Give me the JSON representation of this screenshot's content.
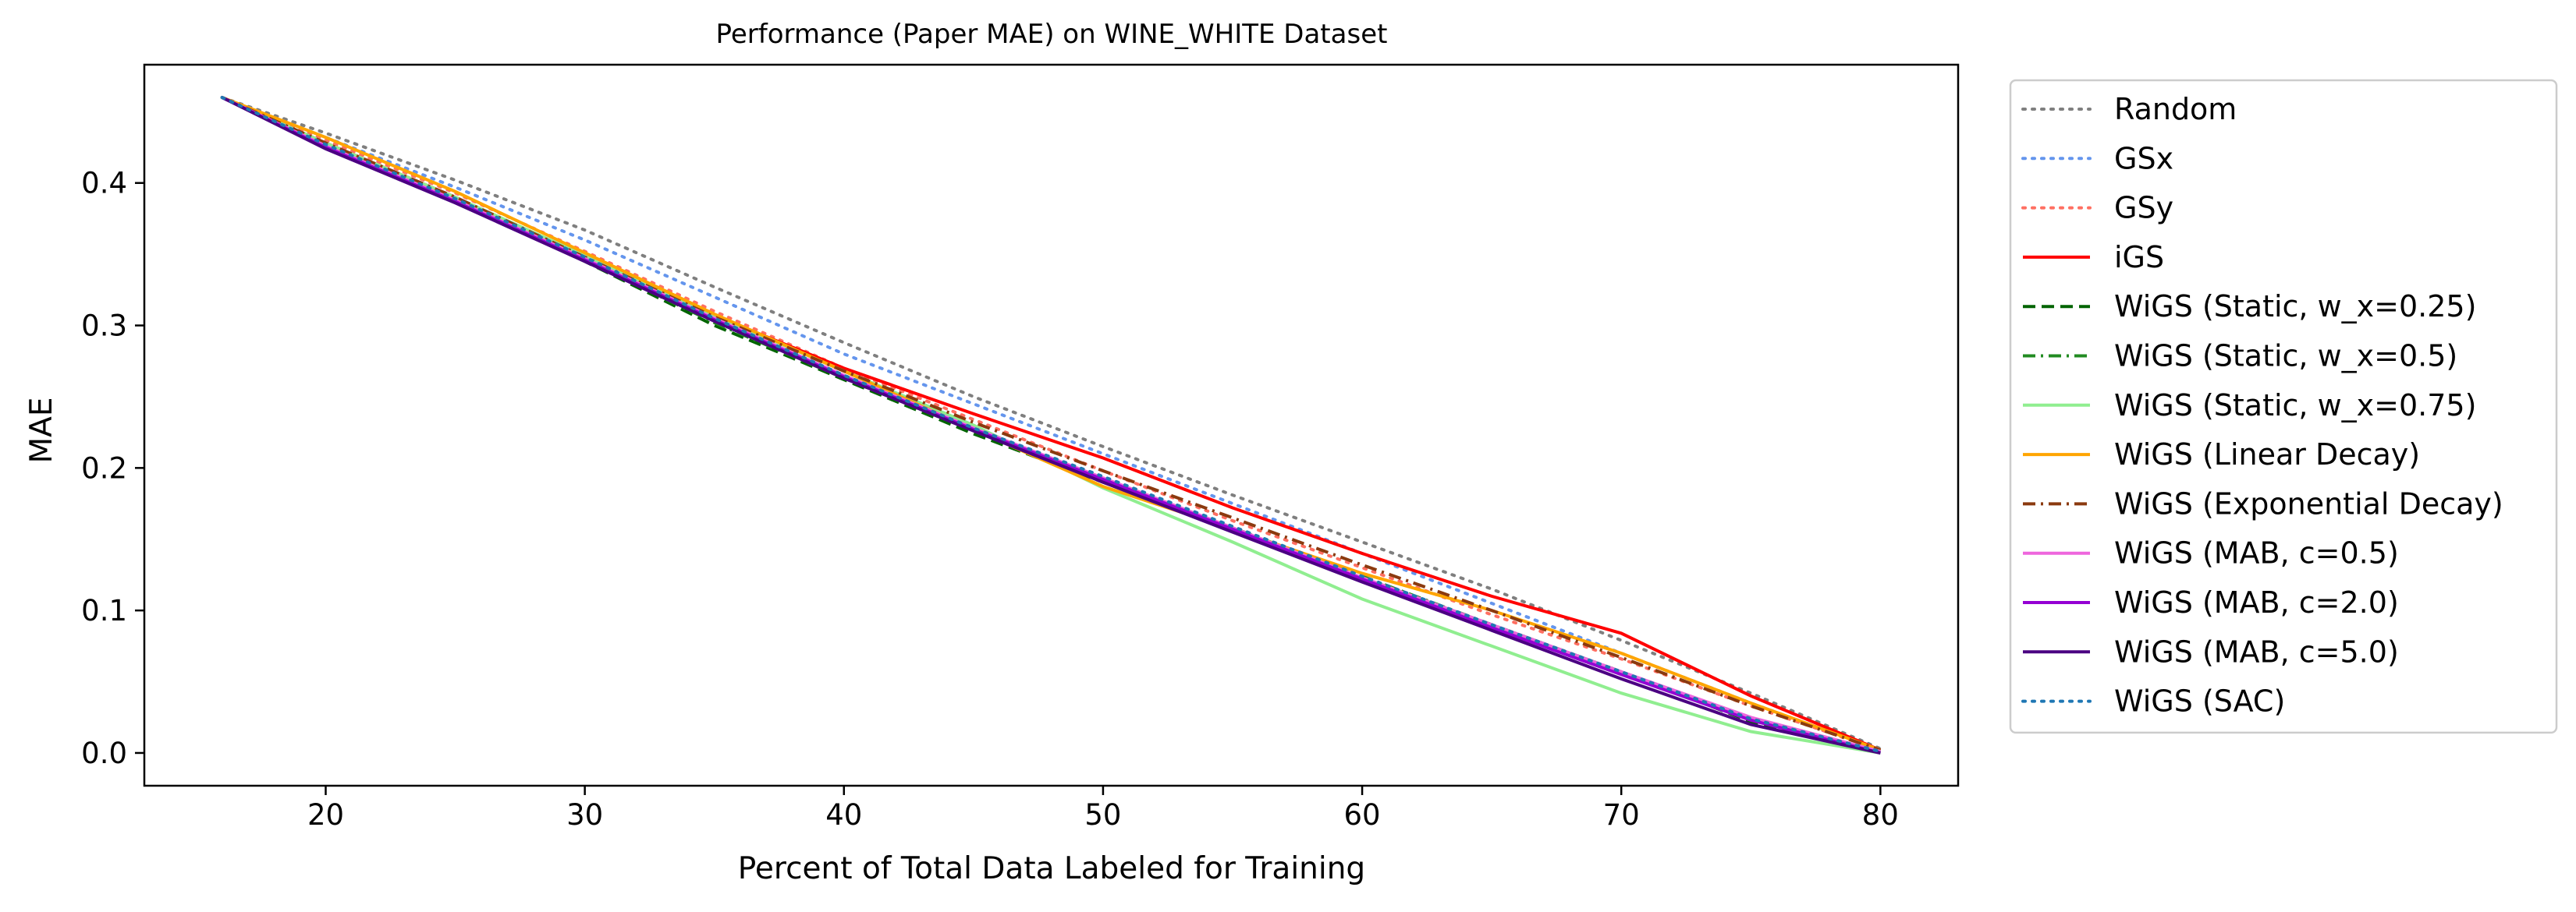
{
  "chart_data": {
    "type": "line",
    "title": "Performance (Paper MAE) on WINE_WHITE Dataset",
    "xlabel": "Percent of Total Data Labeled for Training",
    "ylabel": "MAE",
    "xlim": [
      13,
      83
    ],
    "ylim": [
      -0.023,
      0.483
    ],
    "xticks": [
      20,
      30,
      40,
      50,
      60,
      70,
      80
    ],
    "yticks": [
      0.0,
      0.1,
      0.2,
      0.3,
      0.4
    ],
    "xtick_labels": [
      "20",
      "30",
      "40",
      "50",
      "60",
      "70",
      "80"
    ],
    "ytick_labels": [
      "0.0",
      "0.1",
      "0.2",
      "0.3",
      "0.4"
    ],
    "grid": false,
    "legend_position": "outside-right",
    "series": [
      {
        "name": "Random",
        "color": "#7f7f7f",
        "dash": "dotted",
        "x": [
          16,
          20,
          25,
          30,
          35,
          40,
          45,
          50,
          55,
          60,
          65,
          70,
          75,
          80
        ],
        "y": [
          0.46,
          0.435,
          0.402,
          0.367,
          0.327,
          0.288,
          0.25,
          0.215,
          0.181,
          0.148,
          0.115,
          0.079,
          0.042,
          0.003
        ]
      },
      {
        "name": "GSx",
        "color": "#6495ed",
        "dash": "dotted",
        "x": [
          16,
          20,
          25,
          30,
          35,
          40,
          45,
          50,
          55,
          60,
          65,
          70,
          75,
          80
        ],
        "y": [
          0.46,
          0.432,
          0.397,
          0.36,
          0.32,
          0.28,
          0.245,
          0.21,
          0.175,
          0.14,
          0.105,
          0.07,
          0.035,
          0.002
        ]
      },
      {
        "name": "GSy",
        "color": "#ff6f61",
        "dash": "dotted",
        "x": [
          16,
          20,
          25,
          30,
          35,
          40,
          45,
          50,
          55,
          60,
          65,
          70,
          75,
          80
        ],
        "y": [
          0.46,
          0.43,
          0.393,
          0.352,
          0.31,
          0.27,
          0.234,
          0.198,
          0.163,
          0.13,
          0.097,
          0.066,
          0.033,
          0.002
        ]
      },
      {
        "name": "iGS",
        "color": "#ff0000",
        "dash": "solid",
        "x": [
          16,
          20,
          25,
          30,
          35,
          40,
          45,
          50,
          55,
          60,
          65,
          70,
          75,
          80
        ],
        "y": [
          0.46,
          0.428,
          0.39,
          0.347,
          0.307,
          0.27,
          0.238,
          0.207,
          0.172,
          0.14,
          0.11,
          0.084,
          0.04,
          0.002
        ]
      },
      {
        "name": "WiGS (Static, w_x=0.25)",
        "color": "#006400",
        "dash": "dashed",
        "x": [
          16,
          20,
          25,
          30,
          35,
          40,
          45,
          50,
          55,
          60,
          65,
          70,
          75,
          80
        ],
        "y": [
          0.46,
          0.427,
          0.387,
          0.345,
          0.3,
          0.262,
          0.224,
          0.19,
          0.157,
          0.123,
          0.09,
          0.057,
          0.022,
          0.001
        ]
      },
      {
        "name": "WiGS (Static, w_x=0.5)",
        "color": "#228b22",
        "dash": "dashdot",
        "x": [
          16,
          20,
          25,
          30,
          35,
          40,
          45,
          50,
          55,
          60,
          65,
          70,
          75,
          80
        ],
        "y": [
          0.46,
          0.427,
          0.388,
          0.346,
          0.302,
          0.263,
          0.226,
          0.192,
          0.158,
          0.124,
          0.09,
          0.057,
          0.024,
          0.001
        ]
      },
      {
        "name": "WiGS (Static, w_x=0.75)",
        "color": "#90ee90",
        "dash": "solid",
        "x": [
          16,
          20,
          25,
          30,
          35,
          40,
          45,
          50,
          55,
          60,
          65,
          70,
          75,
          80
        ],
        "y": [
          0.46,
          0.428,
          0.39,
          0.349,
          0.307,
          0.268,
          0.23,
          0.186,
          0.148,
          0.108,
          0.075,
          0.042,
          0.015,
          0.0
        ]
      },
      {
        "name": "WiGS (Linear Decay)",
        "color": "#ffa500",
        "dash": "solid",
        "x": [
          16,
          20,
          25,
          30,
          35,
          40,
          45,
          50,
          55,
          60,
          65,
          70,
          75,
          80
        ],
        "y": [
          0.46,
          0.432,
          0.394,
          0.351,
          0.308,
          0.268,
          0.227,
          0.187,
          0.157,
          0.126,
          0.1,
          0.07,
          0.035,
          0.002
        ]
      },
      {
        "name": "WiGS (Exponential Decay)",
        "color": "#8b3a0f",
        "dash": "dashdot",
        "x": [
          16,
          20,
          25,
          30,
          35,
          40,
          45,
          50,
          55,
          60,
          65,
          70,
          75,
          80
        ],
        "y": [
          0.46,
          0.428,
          0.39,
          0.348,
          0.306,
          0.268,
          0.232,
          0.198,
          0.165,
          0.132,
          0.1,
          0.067,
          0.033,
          0.002
        ]
      },
      {
        "name": "WiGS (MAB, c=0.5)",
        "color": "#ee66dd",
        "dash": "solid",
        "x": [
          16,
          20,
          25,
          30,
          35,
          40,
          45,
          50,
          55,
          60,
          65,
          70,
          75,
          80
        ],
        "y": [
          0.46,
          0.426,
          0.388,
          0.347,
          0.305,
          0.265,
          0.228,
          0.193,
          0.158,
          0.123,
          0.09,
          0.057,
          0.025,
          0.001
        ]
      },
      {
        "name": "WiGS (MAB, c=2.0)",
        "color": "#9400d3",
        "dash": "solid",
        "x": [
          16,
          20,
          25,
          30,
          35,
          40,
          45,
          50,
          55,
          60,
          65,
          70,
          75,
          80
        ],
        "y": [
          0.46,
          0.425,
          0.387,
          0.346,
          0.304,
          0.264,
          0.227,
          0.192,
          0.157,
          0.122,
          0.088,
          0.055,
          0.023,
          0.0
        ]
      },
      {
        "name": "WiGS (MAB, c=5.0)",
        "color": "#4b0082",
        "dash": "solid",
        "x": [
          16,
          20,
          25,
          30,
          35,
          40,
          45,
          50,
          55,
          60,
          65,
          70,
          75,
          80
        ],
        "y": [
          0.46,
          0.424,
          0.386,
          0.345,
          0.303,
          0.263,
          0.226,
          0.19,
          0.155,
          0.12,
          0.086,
          0.052,
          0.02,
          0.0
        ]
      },
      {
        "name": "WiGS (SAC)",
        "color": "#1f77b4",
        "dash": "dotted",
        "x": [
          16,
          20,
          25,
          30,
          35,
          40,
          45,
          50,
          55,
          60,
          65,
          70,
          75,
          80
        ],
        "y": [
          0.46,
          0.427,
          0.389,
          0.348,
          0.305,
          0.265,
          0.228,
          0.194,
          0.159,
          0.124,
          0.09,
          0.057,
          0.024,
          0.001
        ]
      }
    ]
  }
}
